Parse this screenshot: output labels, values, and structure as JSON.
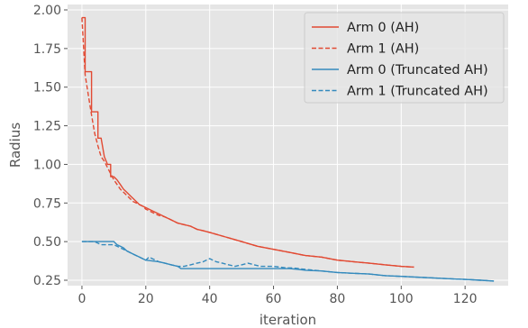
{
  "chart_data": {
    "type": "line",
    "title": "",
    "xlabel": "iteration",
    "ylabel": "Radius",
    "xlim": [
      -4.5,
      133.5
    ],
    "ylim": [
      0.215,
      2.035
    ],
    "xticks": [
      0,
      20,
      40,
      60,
      80,
      100,
      120
    ],
    "xtick_labels": [
      "0",
      "20",
      "40",
      "60",
      "80",
      "100",
      "120"
    ],
    "yticks": [
      0.25,
      0.5,
      0.75,
      1.0,
      1.25,
      1.5,
      1.75,
      2.0
    ],
    "ytick_labels": [
      "0.25",
      "0.50",
      "0.75",
      "1.00",
      "1.25",
      "1.50",
      "1.75",
      "2.00"
    ],
    "grid": true,
    "legend": "top-right",
    "series": [
      {
        "name": "Arm 0 (AH)",
        "color": "#e24a33",
        "dash": "solid",
        "x": [
          0,
          1,
          1,
          2,
          3,
          3,
          4,
          5,
          5,
          6,
          7,
          7,
          8,
          9,
          9,
          10,
          11,
          12,
          13,
          14,
          15,
          16,
          17,
          18,
          19,
          20,
          22,
          24,
          26,
          28,
          30,
          32,
          34,
          36,
          38,
          40,
          45,
          50,
          55,
          60,
          65,
          70,
          75,
          80,
          85,
          90,
          95,
          100,
          104
        ],
        "y": [
          1.95,
          1.95,
          1.6,
          1.6,
          1.6,
          1.34,
          1.34,
          1.34,
          1.17,
          1.17,
          1.05,
          1.05,
          1.0,
          1.0,
          0.92,
          0.92,
          0.9,
          0.87,
          0.84,
          0.82,
          0.8,
          0.78,
          0.76,
          0.74,
          0.73,
          0.72,
          0.7,
          0.68,
          0.66,
          0.64,
          0.62,
          0.61,
          0.6,
          0.58,
          0.57,
          0.56,
          0.53,
          0.5,
          0.47,
          0.45,
          0.43,
          0.41,
          0.4,
          0.38,
          0.37,
          0.36,
          0.35,
          0.34,
          0.335
        ]
      },
      {
        "name": "Arm 1 (AH)",
        "color": "#e24a33",
        "dash": "dashed",
        "x": [
          0,
          1,
          2,
          3,
          4,
          5,
          6,
          7,
          8,
          9,
          10,
          11,
          12,
          13,
          14,
          15,
          16,
          17,
          18,
          19,
          20,
          22,
          24,
          26,
          28,
          30,
          32,
          34,
          36,
          38,
          40,
          45,
          50,
          55,
          60,
          65,
          70,
          75,
          80,
          85,
          90,
          95,
          100,
          104
        ],
        "y": [
          1.95,
          1.58,
          1.45,
          1.32,
          1.2,
          1.12,
          1.05,
          1.02,
          0.98,
          0.94,
          0.9,
          0.87,
          0.84,
          0.82,
          0.8,
          0.78,
          0.76,
          0.75,
          0.74,
          0.73,
          0.71,
          0.69,
          0.67,
          0.66,
          0.64,
          0.62,
          0.61,
          0.6,
          0.58,
          0.57,
          0.56,
          0.53,
          0.5,
          0.47,
          0.45,
          0.43,
          0.41,
          0.4,
          0.38,
          0.37,
          0.36,
          0.35,
          0.34,
          0.335
        ]
      },
      {
        "name": "Arm 0 (Truncated AH)",
        "color": "#348abd",
        "dash": "solid",
        "x": [
          0,
          2,
          4,
          6,
          8,
          10,
          11,
          12,
          13,
          14,
          16,
          18,
          20,
          22,
          24,
          26,
          28,
          30,
          31,
          35,
          40,
          45,
          50,
          55,
          60,
          65,
          68,
          70,
          75,
          80,
          85,
          90,
          95,
          100,
          105,
          110,
          115,
          120,
          125,
          129
        ],
        "y": [
          0.5,
          0.5,
          0.5,
          0.5,
          0.5,
          0.5,
          0.48,
          0.47,
          0.46,
          0.44,
          0.42,
          0.4,
          0.38,
          0.375,
          0.37,
          0.36,
          0.35,
          0.34,
          0.325,
          0.325,
          0.325,
          0.325,
          0.325,
          0.325,
          0.325,
          0.325,
          0.32,
          0.315,
          0.31,
          0.3,
          0.295,
          0.29,
          0.28,
          0.275,
          0.27,
          0.265,
          0.26,
          0.255,
          0.25,
          0.245
        ]
      },
      {
        "name": "Arm 1 (Truncated AH)",
        "color": "#348abd",
        "dash": "dashed",
        "x": [
          0,
          2,
          4,
          6,
          8,
          10,
          12,
          14,
          16,
          18,
          20,
          21,
          22,
          24,
          26,
          28,
          30,
          32,
          34,
          36,
          38,
          40,
          42,
          44,
          46,
          48,
          50,
          52,
          54,
          56,
          58,
          60,
          62,
          64,
          66,
          68,
          70,
          75,
          80,
          85,
          90,
          95,
          100,
          105,
          110,
          115,
          120,
          125,
          129
        ],
        "y": [
          0.5,
          0.5,
          0.5,
          0.48,
          0.48,
          0.48,
          0.46,
          0.44,
          0.42,
          0.4,
          0.38,
          0.4,
          0.39,
          0.37,
          0.36,
          0.35,
          0.34,
          0.34,
          0.35,
          0.36,
          0.37,
          0.39,
          0.37,
          0.36,
          0.35,
          0.34,
          0.35,
          0.36,
          0.35,
          0.34,
          0.34,
          0.34,
          0.335,
          0.33,
          0.33,
          0.325,
          0.32,
          0.31,
          0.3,
          0.295,
          0.29,
          0.28,
          0.275,
          0.27,
          0.265,
          0.26,
          0.255,
          0.25,
          0.245
        ]
      }
    ]
  }
}
